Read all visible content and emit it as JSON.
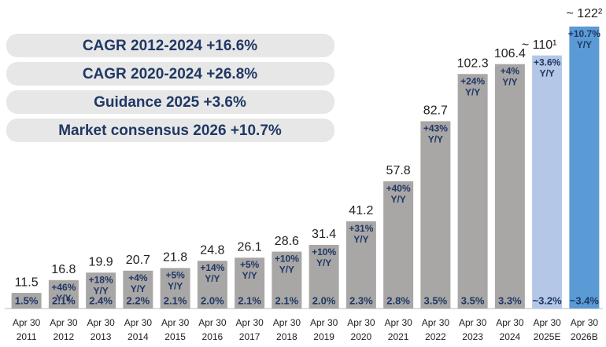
{
  "chart_data": {
    "type": "bar",
    "categories": [
      "Apr 30 2011",
      "Apr 30 2012",
      "Apr 30 2013",
      "Apr 30 2014",
      "Apr 30 2015",
      "Apr 30 2016",
      "Apr 30 2017",
      "Apr 30 2018",
      "Apr 30 2019",
      "Apr 30 2020",
      "Apr 30 2021",
      "Apr 30 2022",
      "Apr 30 2023",
      "Apr 30 2024",
      "Apr 30 2025E",
      "Apr 30 2026B"
    ],
    "values": [
      11.5,
      16.8,
      19.9,
      20.7,
      21.8,
      24.8,
      26.1,
      28.6,
      31.4,
      41.2,
      57.8,
      82.7,
      102.3,
      106.4,
      110,
      122
    ],
    "value_labels": [
      "11.5",
      "16.8",
      "19.9",
      "20.7",
      "21.8",
      "24.8",
      "26.1",
      "28.6",
      "31.4",
      "41.2",
      "57.8",
      "82.7",
      "102.3",
      "106.4",
      "~ 110¹",
      "~ 122²"
    ],
    "growth_labels": [
      null,
      "+46% Y/Y",
      "+18% Y/Y",
      "+4% Y/Y",
      "+5% Y/Y",
      "+14% Y/Y",
      "+5% Y/Y",
      "+10% Y/Y",
      "+10% Y/Y",
      "+31% Y/Y",
      "+40% Y/Y",
      "+43% Y/Y",
      "+24% Y/Y",
      "+4% Y/Y",
      "+3.6% Y/Y",
      "+10.7% Y/Y"
    ],
    "share_labels": [
      "1.5%",
      "2.1%",
      "2.4%",
      "2.2%",
      "2.1%",
      "2.0%",
      "2.1%",
      "2.1%",
      "2.0%",
      "2.3%",
      "2.8%",
      "3.5%",
      "3.5%",
      "3.3%",
      "~3.2%",
      "~3.4%"
    ],
    "colors": [
      "#a9a6a6",
      "#a9a6a6",
      "#a9a6a6",
      "#a9a6a6",
      "#a9a6a6",
      "#a9a6a6",
      "#a9a6a6",
      "#a9a6a6",
      "#a9a6a6",
      "#a9a6a6",
      "#a9a6a6",
      "#a9a6a6",
      "#a9a6a6",
      "#a9a6a6",
      "#b4c7e7",
      "#5b9bd5"
    ],
    "ylim": [
      5,
      133
    ],
    "callouts": [
      "CAGR 2012-2024 +16.6%",
      "CAGR 2020-2024 +26.8%",
      "Guidance 2025 +3.6%",
      "Market consensus 2026 +10.7%"
    ]
  }
}
